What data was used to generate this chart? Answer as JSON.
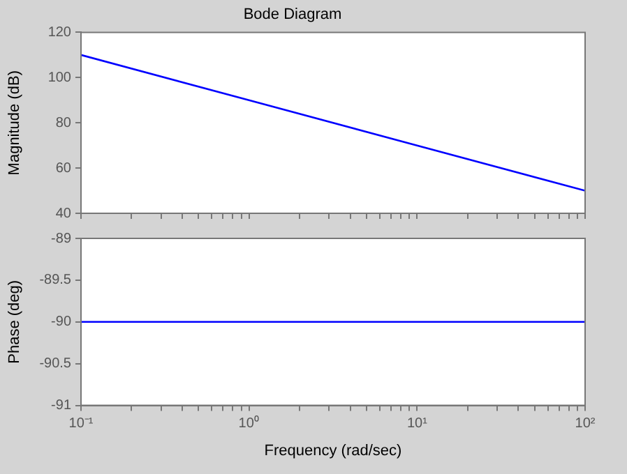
{
  "chart_data": [
    {
      "type": "line",
      "title": "Bode Diagram",
      "ylabel": "Magnitude (dB)",
      "x": [
        0.1,
        1,
        10,
        100
      ],
      "values": [
        110,
        90,
        70,
        50
      ],
      "color": "#0000ff",
      "log": "x",
      "xlim": [
        0.1,
        100
      ],
      "ylim": [
        40,
        120
      ],
      "yticks": [
        40,
        60,
        80,
        100,
        120
      ],
      "tick_labels": "y",
      "xticks": [
        {
          "value": 0.1,
          "label": null
        },
        {
          "value": 0.2,
          "label": null
        },
        {
          "value": 0.3,
          "label": null
        },
        {
          "value": 0.4,
          "label": null
        },
        {
          "value": 0.5,
          "label": null
        },
        {
          "value": 0.6,
          "label": null
        },
        {
          "value": 0.7,
          "label": null
        },
        {
          "value": 0.8,
          "label": null
        },
        {
          "value": 0.9,
          "label": null
        },
        {
          "value": 1,
          "label": null
        },
        {
          "value": 2,
          "label": null
        },
        {
          "value": 3,
          "label": null
        },
        {
          "value": 4,
          "label": null
        },
        {
          "value": 5,
          "label": null
        },
        {
          "value": 6,
          "label": null
        },
        {
          "value": 7,
          "label": null
        },
        {
          "value": 8,
          "label": null
        },
        {
          "value": 9,
          "label": null
        },
        {
          "value": 10,
          "label": null
        },
        {
          "value": 20,
          "label": null
        },
        {
          "value": 30,
          "label": null
        },
        {
          "value": 40,
          "label": null
        },
        {
          "value": 50,
          "label": null
        },
        {
          "value": 60,
          "label": null
        },
        {
          "value": 70,
          "label": null
        },
        {
          "value": 80,
          "label": null
        },
        {
          "value": 90,
          "label": null
        },
        {
          "value": 100,
          "label": null
        }
      ]
    },
    {
      "type": "line",
      "xlabel": "Frequency (rad/sec)",
      "ylabel": "Phase (deg)",
      "x": [
        0.1,
        1,
        10,
        100
      ],
      "values": [
        -90,
        -90,
        -90,
        -90
      ],
      "color": "#0000ff",
      "log": "x",
      "xlim": [
        0.1,
        100
      ],
      "ylim": [
        -91,
        -89
      ],
      "yticks": [
        -91,
        -90.5,
        -90,
        -89.5,
        -89
      ],
      "xticks": [
        {
          "value": 0.1,
          "label": "10⁻¹"
        },
        {
          "value": 0.2,
          "label": null
        },
        {
          "value": 0.3,
          "label": null
        },
        {
          "value": 0.4,
          "label": null
        },
        {
          "value": 0.5,
          "label": null
        },
        {
          "value": 0.6,
          "label": null
        },
        {
          "value": 0.7,
          "label": null
        },
        {
          "value": 0.8,
          "label": null
        },
        {
          "value": 0.9,
          "label": null
        },
        {
          "value": 1,
          "label": "10⁰"
        },
        {
          "value": 2,
          "label": null
        },
        {
          "value": 3,
          "label": null
        },
        {
          "value": 4,
          "label": null
        },
        {
          "value": 5,
          "label": null
        },
        {
          "value": 6,
          "label": null
        },
        {
          "value": 7,
          "label": null
        },
        {
          "value": 8,
          "label": null
        },
        {
          "value": 9,
          "label": null
        },
        {
          "value": 10,
          "label": "10¹"
        },
        {
          "value": 20,
          "label": null
        },
        {
          "value": 30,
          "label": null
        },
        {
          "value": 40,
          "label": null
        },
        {
          "value": 50,
          "label": null
        },
        {
          "value": 60,
          "label": null
        },
        {
          "value": 70,
          "label": null
        },
        {
          "value": 80,
          "label": null
        },
        {
          "value": 90,
          "label": null
        },
        {
          "value": 100,
          "label": "10²"
        }
      ]
    }
  ]
}
